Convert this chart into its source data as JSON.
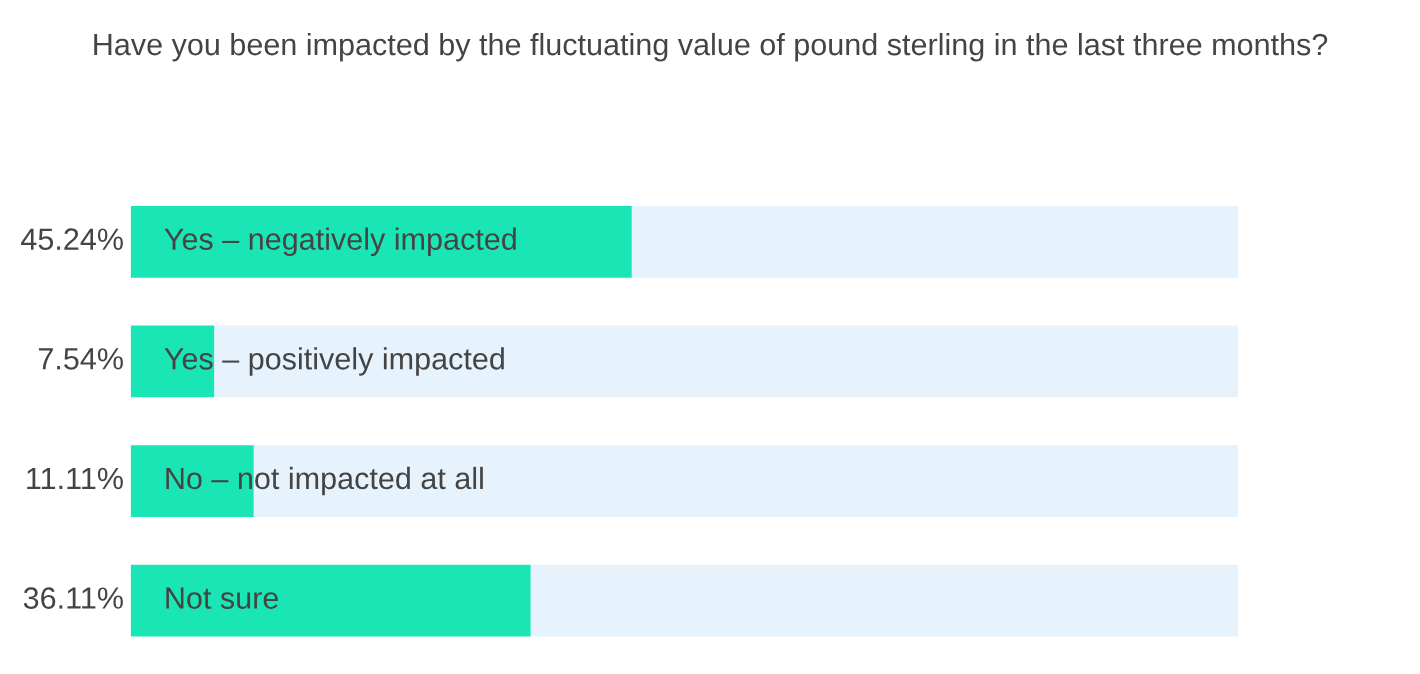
{
  "chart_data": {
    "type": "bar",
    "orientation": "horizontal",
    "stacked": true,
    "title": "Have you been impacted by the fluctuating value of pound sterling in the last three months?",
    "categories": [
      "Yes – negatively impacted",
      "Yes – positively impacted",
      "No – not impacted at all",
      "Not sure"
    ],
    "series": [
      {
        "color": "#1ae5b4",
        "values": [
          45.24,
          7.54,
          11.11,
          36.11
        ],
        "value_labels": [
          "45.24%",
          "7.54%",
          "11.11%",
          "36.11%"
        ]
      },
      {
        "color": "#e6f2fc",
        "values": [
          54.76,
          92.46,
          88.89,
          63.89
        ]
      }
    ],
    "xlim": [
      0,
      100
    ]
  }
}
